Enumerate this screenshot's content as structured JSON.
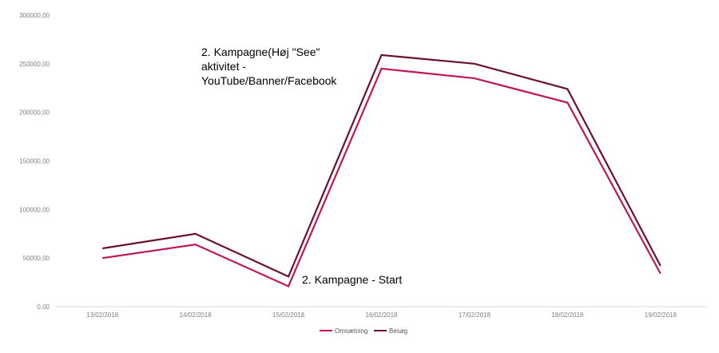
{
  "chart_data": {
    "type": "line",
    "title": "",
    "xlabel": "",
    "ylabel": "",
    "categories": [
      "13/02/2018",
      "14/02/2018",
      "15/02/2018",
      "16/02/2018",
      "17/02/2018",
      "18/02/2018",
      "19/02/2018"
    ],
    "ylim": [
      0,
      300000
    ],
    "yticks": [
      "0,00",
      "50000,00",
      "100000,00",
      "150000,00",
      "200000,00",
      "250000,00",
      "300000,00"
    ],
    "grid": false,
    "legend_position": "bottom",
    "series": [
      {
        "name": "Omsætning",
        "color": "#c0155a",
        "values": [
          50000,
          64000,
          21000,
          245000,
          235000,
          210000,
          34000
        ]
      },
      {
        "name": "Besøg",
        "color": "#6b0f35",
        "values": [
          60000,
          75000,
          31000,
          259000,
          250000,
          224000,
          42000
        ]
      }
    ],
    "annotations": [
      {
        "lines": [
          "2. Kampagne(Høj \"See\"",
          "aktivitet -",
          "YouTube/Banner/Facebook"
        ],
        "anchor_category": "15/02/2018"
      },
      {
        "lines": [
          "2. Kampagne - Start"
        ],
        "anchor_category": "15/02/2018"
      }
    ]
  }
}
